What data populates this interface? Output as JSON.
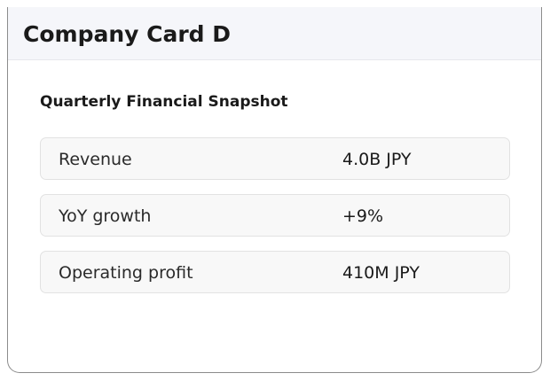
{
  "card": {
    "title": "Company Card D",
    "section_title": "Quarterly Financial Snapshot",
    "metrics": [
      {
        "label": "Revenue",
        "value": "4.0B JPY"
      },
      {
        "label": "YoY growth",
        "value": "+9%"
      },
      {
        "label": "Operating profit",
        "value": "410M JPY"
      }
    ]
  },
  "colors": {
    "header_background": "#f5f6fa",
    "row_background": "#f8f8f8",
    "text": "#1a1a1a"
  }
}
